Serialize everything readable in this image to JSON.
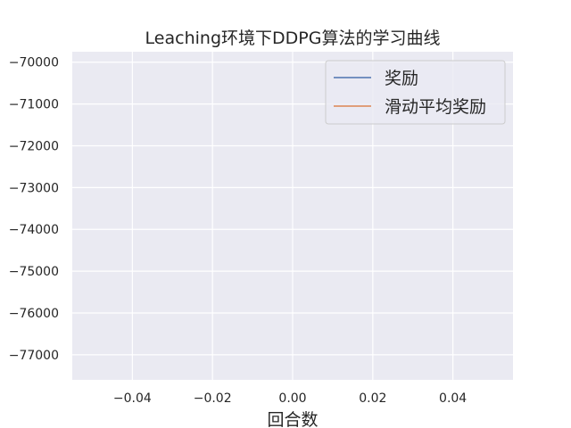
{
  "chart_data": {
    "type": "line",
    "title": "Leaching环境下DDPG算法的学习曲线",
    "xlabel": "回合数",
    "ylabel": "",
    "xlim": [
      -0.055,
      0.055
    ],
    "ylim": [
      -77600,
      -69750
    ],
    "x_ticks": [
      -0.04,
      -0.02,
      0.0,
      0.02,
      0.04
    ],
    "x_tick_labels": [
      "−0.04",
      "−0.02",
      "0.00",
      "0.02",
      "0.04"
    ],
    "y_ticks": [
      -70000,
      -71000,
      -72000,
      -73000,
      -74000,
      -75000,
      -76000,
      -77000
    ],
    "y_tick_labels": [
      "−70000",
      "−71000",
      "−72000",
      "−73000",
      "−74000",
      "−75000",
      "−76000",
      "−77000"
    ],
    "grid": true,
    "legend_position": "top-right",
    "series": [
      {
        "name": "奖励",
        "x": [],
        "values": [],
        "color": "#4c72b0"
      },
      {
        "name": "滑动平均奖励",
        "x": [],
        "values": [],
        "color": "#dd8452"
      }
    ],
    "colors": {
      "plot_background": "#eaeaf2",
      "grid": "#ffffff"
    }
  }
}
